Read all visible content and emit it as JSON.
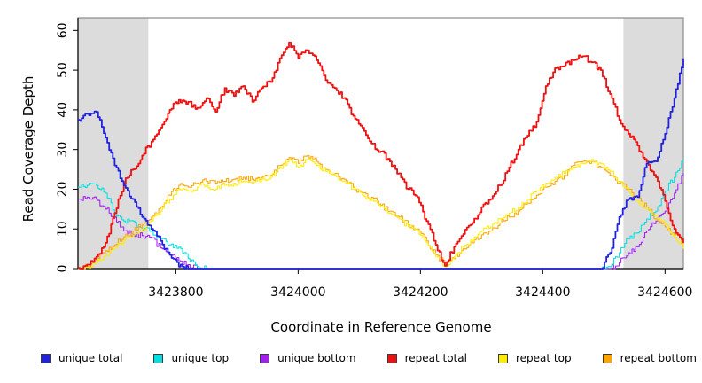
{
  "chart_data": {
    "type": "line",
    "title": "",
    "xlabel": "Coordinate in Reference Genome",
    "ylabel": "Read Coverage Depth",
    "xlim": [
      3423640,
      3424630
    ],
    "ylim": [
      0,
      63.2
    ],
    "x_ticks": [
      3423800,
      3424000,
      3424200,
      3424400,
      3424600
    ],
    "y_ticks": [
      0,
      10,
      20,
      30,
      40,
      50,
      60
    ],
    "grid": false,
    "legend_position": "bottom",
    "shaded_regions": [
      {
        "x0": 3423640,
        "x1": 3423755,
        "color": "#DCDCDC"
      },
      {
        "x0": 3424532,
        "x1": 3424630,
        "color": "#DCDCDC"
      }
    ],
    "x": [
      3423640,
      3423655,
      3423670,
      3423685,
      3423700,
      3423715,
      3423730,
      3423745,
      3423760,
      3423775,
      3423790,
      3423805,
      3423820,
      3423835,
      3423850,
      3423865,
      3423880,
      3423895,
      3423910,
      3423925,
      3423940,
      3423955,
      3423970,
      3423985,
      3424000,
      3424015,
      3424030,
      3424045,
      3424060,
      3424075,
      3424090,
      3424105,
      3424120,
      3424135,
      3424150,
      3424165,
      3424180,
      3424195,
      3424210,
      3424225,
      3424240,
      3424255,
      3424270,
      3424285,
      3424300,
      3424315,
      3424330,
      3424345,
      3424360,
      3424375,
      3424390,
      3424405,
      3424420,
      3424435,
      3424450,
      3424465,
      3424480,
      3424495,
      3424510,
      3424525,
      3424540,
      3424555,
      3424570,
      3424585,
      3424600,
      3424615,
      3424630
    ],
    "series": [
      {
        "name": "unique total",
        "color": "#2121DE",
        "width": "thick",
        "values": [
          37.5,
          39,
          39.5,
          33,
          26,
          21,
          17.5,
          13,
          10,
          7,
          3.5,
          0.5,
          0,
          0,
          0,
          0,
          0,
          0,
          0,
          0,
          0,
          0,
          0,
          0,
          0,
          0,
          0,
          0,
          0,
          0,
          0,
          0,
          0,
          0,
          0,
          0,
          0,
          0,
          0,
          0,
          0,
          0,
          0,
          0,
          0,
          0,
          0,
          0,
          0,
          0,
          0,
          0,
          0,
          0,
          0,
          0,
          0,
          0,
          4,
          13,
          17.5,
          18,
          26.5,
          27,
          34,
          43,
          53
        ]
      },
      {
        "name": "unique top",
        "color": "#00E0E0",
        "width": "thin",
        "values": [
          20.5,
          21,
          21,
          19,
          14,
          12,
          12,
          9.8,
          9.5,
          7.5,
          6,
          5.4,
          2.5,
          0.5,
          0,
          0,
          0,
          0,
          0,
          0,
          0,
          0,
          0,
          0,
          0,
          0,
          0,
          0,
          0,
          0,
          0,
          0,
          0,
          0,
          0,
          0,
          0,
          0,
          0,
          0,
          0,
          0,
          0,
          0,
          0,
          0,
          0,
          0,
          0,
          0,
          0,
          0,
          0,
          0,
          0,
          0,
          0,
          0,
          0.5,
          4,
          7.5,
          9,
          12.5,
          14.5,
          19.5,
          23,
          27.5
        ]
      },
      {
        "name": "unique bottom",
        "color": "#A020F0",
        "width": "thin",
        "values": [
          17.5,
          18,
          17.5,
          15,
          13,
          9.5,
          8.6,
          8.3,
          7.8,
          5.2,
          3.4,
          2,
          1,
          0,
          0,
          0,
          0,
          0,
          0,
          0,
          0,
          0,
          0,
          0,
          0,
          0,
          0,
          0,
          0,
          0,
          0,
          0,
          0,
          0,
          0,
          0,
          0,
          0,
          0,
          0,
          0,
          0,
          0,
          0,
          0,
          0,
          0,
          0,
          0,
          0,
          0,
          0,
          0,
          0,
          0,
          0,
          0,
          0,
          0,
          1.5,
          4,
          5.5,
          9.5,
          12,
          14.5,
          19,
          24
        ]
      },
      {
        "name": "repeat total",
        "color": "#EE1111",
        "width": "thick",
        "values": [
          0.2,
          1,
          3,
          6.5,
          14,
          21.5,
          25,
          28.5,
          32,
          35.5,
          40,
          42.5,
          42,
          40.5,
          43,
          39.5,
          45.5,
          43.5,
          46,
          42,
          45.5,
          47,
          53,
          57,
          53,
          55,
          52.5,
          47.5,
          45.5,
          43,
          38.5,
          35.5,
          31.5,
          29.5,
          27,
          24,
          20,
          18,
          12,
          6,
          0.7,
          5.5,
          8.7,
          11.5,
          15.5,
          17.5,
          21,
          25.5,
          30,
          33.5,
          37,
          46,
          50.5,
          51,
          52.5,
          53.5,
          52,
          50,
          44,
          37.5,
          34,
          31,
          27,
          23,
          17,
          10,
          6.5
        ]
      },
      {
        "name": "repeat top",
        "color": "#FFEB00",
        "width": "thin",
        "values": [
          0,
          0.3,
          1.5,
          3.5,
          5.2,
          7,
          8.5,
          10,
          12,
          14.5,
          17.5,
          20,
          19.5,
          20.5,
          21,
          20,
          21,
          21.5,
          22,
          21.5,
          22.5,
          23,
          25.5,
          27.5,
          25.5,
          27.5,
          26,
          24.5,
          23.5,
          22,
          20,
          18.5,
          17.5,
          15.5,
          14,
          12.5,
          10.5,
          9.5,
          6.5,
          3,
          0.5,
          3,
          5.5,
          7,
          9.5,
          10.5,
          12.5,
          14,
          15.5,
          17.5,
          19.5,
          21.5,
          23,
          24,
          25.5,
          26.5,
          27.5,
          26.5,
          24.5,
          22,
          19.5,
          17,
          15,
          13.5,
          11,
          8,
          5
        ]
      },
      {
        "name": "repeat bottom",
        "color": "#FFA500",
        "width": "thin",
        "values": [
          0,
          0.5,
          2,
          4.5,
          6,
          8,
          9.5,
          11,
          13,
          15.5,
          18.5,
          21,
          20.5,
          21.5,
          22,
          21.5,
          22,
          22.5,
          23,
          22.5,
          23,
          23.5,
          26,
          28,
          26.5,
          28.5,
          27,
          25,
          24,
          22.5,
          20.5,
          19,
          18,
          16,
          14.5,
          13,
          11,
          10,
          7,
          3.5,
          1,
          2.5,
          5,
          6.5,
          8.5,
          9.5,
          11.5,
          13,
          14.5,
          16.5,
          18.5,
          20.5,
          22,
          23.5,
          26,
          27,
          27,
          25.5,
          23.5,
          21.5,
          20,
          18,
          15.5,
          12.5,
          10.5,
          8.5,
          6.5
        ]
      }
    ]
  }
}
